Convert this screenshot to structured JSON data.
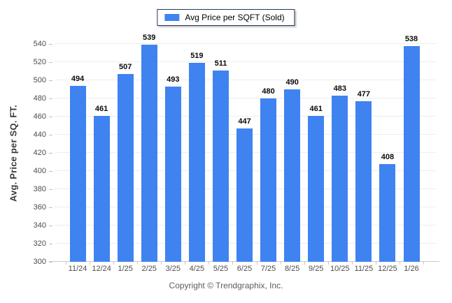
{
  "legend": {
    "label": "Avg Price per SQFT (Sold)",
    "swatch_color": "#3f83f1"
  },
  "chart_data": {
    "type": "bar",
    "title": "Avg Price per SQFT (Sold)",
    "categories": [
      "11/24",
      "12/24",
      "1/25",
      "2/25",
      "3/25",
      "4/25",
      "5/25",
      "6/25",
      "7/25",
      "8/25",
      "9/25",
      "10/25",
      "11/25",
      "12/25",
      "1/26"
    ],
    "values": [
      494,
      461,
      507,
      539,
      493,
      519,
      511,
      447,
      480,
      490,
      461,
      483,
      477,
      408,
      538
    ],
    "xlabel": "",
    "ylabel": "Avg. Price per SQ. FT.",
    "ylim": [
      300,
      540
    ],
    "ytick_step": 20,
    "ytick_labels": [
      "300",
      "320",
      "340",
      "360",
      "380",
      "400",
      "420",
      "440",
      "460",
      "480",
      "500",
      "520",
      "540"
    ],
    "grid": true,
    "legend_position": "top-center",
    "bar_color": "#3f83f1",
    "value_labels_shown": true
  },
  "footer": {
    "copyright": "Copyright © Trendgraphix, Inc."
  }
}
